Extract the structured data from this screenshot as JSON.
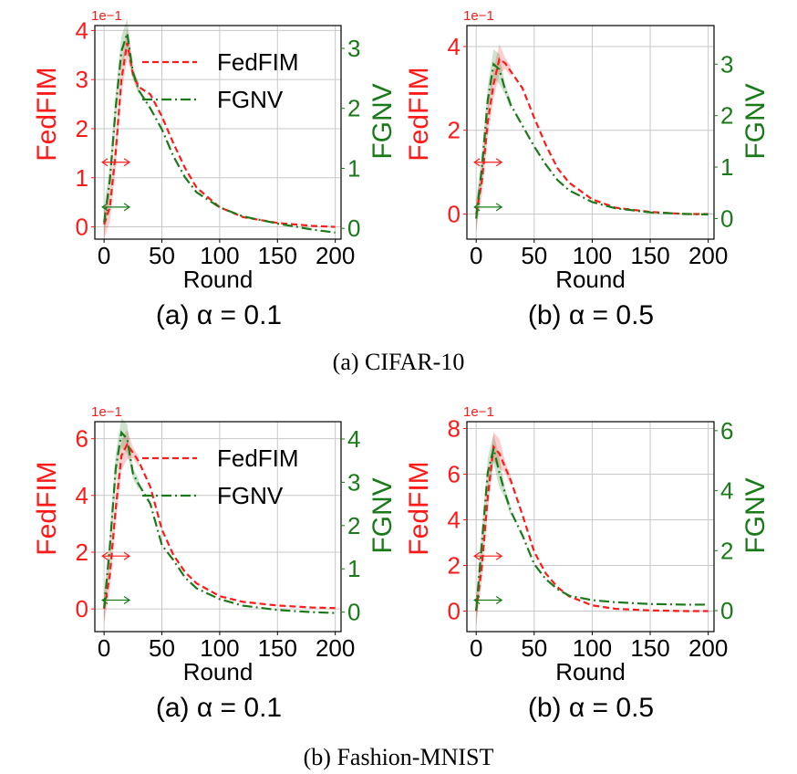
{
  "figure": {
    "groups": [
      {
        "caption": "(a) CIFAR-10"
      },
      {
        "caption": "(b) Fashion-MNIST"
      }
    ]
  },
  "colors": {
    "fedfim": "#ff1a1a",
    "fgnv": "#1a7a1a",
    "grid": "#c8c8c8",
    "axis": "#000000"
  },
  "chart_data": [
    {
      "type": "line",
      "group": "CIFAR-10",
      "subcaption": "(a) α = 0.1",
      "xlabel": "Round",
      "ylabel_left": "FedFIM",
      "ylabel_right": "FGNV",
      "left_multiplier": "1e−1",
      "xlim": [
        -8,
        205
      ],
      "xticks": [
        "0",
        "50",
        "100",
        "150",
        "200"
      ],
      "left_ylim": [
        -0.25,
        4.1
      ],
      "left_yticks": [
        "0",
        "1",
        "2",
        "3",
        "4"
      ],
      "right_ylim": [
        -0.18,
        3.38
      ],
      "right_yticks": [
        "0",
        "1",
        "2",
        "3"
      ],
      "legend": {
        "placement": "upper-right",
        "entries": [
          "FedFIM",
          "FGNV"
        ]
      },
      "grid": true,
      "series": [
        {
          "name": "FedFIM",
          "axis": "left",
          "style": "dashed",
          "x": [
            0,
            5,
            10,
            15,
            20,
            25,
            30,
            40,
            50,
            60,
            70,
            80,
            100,
            120,
            150,
            180,
            200
          ],
          "y": [
            0.05,
            0.4,
            1.5,
            3.0,
            3.75,
            3.1,
            2.85,
            2.7,
            2.25,
            1.7,
            1.2,
            0.8,
            0.4,
            0.2,
            0.08,
            0.02,
            0.0
          ]
        },
        {
          "name": "FGNV",
          "axis": "right",
          "style": "dashdot",
          "x": [
            0,
            5,
            10,
            15,
            20,
            25,
            30,
            40,
            50,
            60,
            70,
            80,
            100,
            120,
            150,
            180,
            200
          ],
          "y": [
            0.1,
            0.8,
            2.0,
            2.95,
            3.25,
            2.6,
            2.3,
            2.0,
            1.65,
            1.2,
            0.85,
            0.6,
            0.35,
            0.2,
            0.08,
            -0.02,
            -0.07
          ]
        }
      ]
    },
    {
      "type": "line",
      "group": "CIFAR-10",
      "subcaption": "(b) α = 0.5",
      "xlabel": "Round",
      "ylabel_left": "FedFIM",
      "ylabel_right": "FGNV",
      "left_multiplier": "1e−1",
      "xlim": [
        -8,
        205
      ],
      "xticks": [
        "0",
        "50",
        "100",
        "150",
        "200"
      ],
      "left_ylim": [
        -0.6,
        4.5
      ],
      "left_yticks": [
        "0",
        "2",
        "4"
      ],
      "right_ylim": [
        -0.4,
        3.75
      ],
      "right_yticks": [
        "0",
        "1",
        "2",
        "3"
      ],
      "legend": {
        "placement": "none",
        "entries": []
      },
      "grid": true,
      "series": [
        {
          "name": "FedFIM",
          "axis": "left",
          "style": "dashed",
          "x": [
            0,
            5,
            10,
            15,
            20,
            25,
            30,
            40,
            50,
            60,
            70,
            80,
            100,
            120,
            150,
            180,
            200
          ],
          "y": [
            0.0,
            0.8,
            2.2,
            3.1,
            3.7,
            3.6,
            3.4,
            3.0,
            2.3,
            1.65,
            1.1,
            0.75,
            0.35,
            0.15,
            0.05,
            0.0,
            0.0
          ]
        },
        {
          "name": "FGNV",
          "axis": "right",
          "style": "dashdot",
          "x": [
            0,
            5,
            10,
            15,
            20,
            25,
            30,
            40,
            50,
            60,
            70,
            80,
            100,
            120,
            150,
            180,
            200
          ],
          "y": [
            0.0,
            1.0,
            2.3,
            3.0,
            2.9,
            2.5,
            2.2,
            1.8,
            1.4,
            1.05,
            0.75,
            0.55,
            0.32,
            0.2,
            0.12,
            0.09,
            0.08
          ]
        }
      ]
    },
    {
      "type": "line",
      "group": "Fashion-MNIST",
      "subcaption": "(a) α = 0.1",
      "xlabel": "Round",
      "ylabel_left": "FedFIM",
      "ylabel_right": "FGNV",
      "left_multiplier": "1e−1",
      "xlim": [
        -8,
        205
      ],
      "xticks": [
        "0",
        "50",
        "100",
        "150",
        "200"
      ],
      "left_ylim": [
        -0.8,
        6.6
      ],
      "left_yticks": [
        "0",
        "2",
        "4",
        "6"
      ],
      "right_ylim": [
        -0.45,
        4.4
      ],
      "right_yticks": [
        "0",
        "1",
        "2",
        "3",
        "4"
      ],
      "legend": {
        "placement": "upper-right",
        "entries": [
          "FedFIM",
          "FGNV"
        ]
      },
      "grid": true,
      "series": [
        {
          "name": "FedFIM",
          "axis": "left",
          "style": "dashed",
          "x": [
            0,
            5,
            10,
            15,
            20,
            25,
            30,
            40,
            50,
            60,
            70,
            80,
            100,
            120,
            150,
            180,
            200
          ],
          "y": [
            0.0,
            1.2,
            3.5,
            5.4,
            5.8,
            5.5,
            5.2,
            4.3,
            2.8,
            1.9,
            1.3,
            0.9,
            0.45,
            0.25,
            0.12,
            0.05,
            0.03
          ]
        },
        {
          "name": "FGNV",
          "axis": "right",
          "style": "dashdot",
          "x": [
            0,
            5,
            10,
            15,
            20,
            25,
            30,
            40,
            50,
            60,
            70,
            80,
            100,
            120,
            150,
            180,
            200
          ],
          "y": [
            0.1,
            1.5,
            3.3,
            4.15,
            4.0,
            3.2,
            2.95,
            2.5,
            1.55,
            1.2,
            0.8,
            0.55,
            0.3,
            0.15,
            0.05,
            0.0,
            -0.02
          ]
        }
      ]
    },
    {
      "type": "line",
      "group": "Fashion-MNIST",
      "subcaption": "(b) α = 0.5",
      "xlabel": "Round",
      "ylabel_left": "FedFIM",
      "ylabel_right": "FGNV",
      "left_multiplier": "1e−1",
      "xlim": [
        -8,
        205
      ],
      "xticks": [
        "0",
        "50",
        "100",
        "150",
        "200"
      ],
      "left_ylim": [
        -0.9,
        8.3
      ],
      "left_yticks": [
        "0",
        "2",
        "4",
        "6",
        "8"
      ],
      "right_ylim": [
        -0.7,
        6.3
      ],
      "right_yticks": [
        "0",
        "2",
        "4",
        "6"
      ],
      "legend": {
        "placement": "none",
        "entries": []
      },
      "grid": true,
      "series": [
        {
          "name": "FedFIM",
          "axis": "left",
          "style": "dashed",
          "x": [
            0,
            5,
            10,
            15,
            20,
            25,
            30,
            40,
            50,
            60,
            70,
            80,
            100,
            120,
            150,
            180,
            200
          ],
          "y": [
            0.0,
            2.0,
            5.0,
            7.2,
            6.9,
            6.3,
            5.7,
            4.2,
            2.6,
            1.65,
            1.05,
            0.65,
            0.25,
            0.1,
            0.03,
            0.0,
            0.0
          ]
        },
        {
          "name": "FGNV",
          "axis": "right",
          "style": "dashdot",
          "x": [
            0,
            5,
            10,
            15,
            20,
            25,
            30,
            40,
            50,
            60,
            70,
            80,
            100,
            120,
            150,
            180,
            200
          ],
          "y": [
            0.0,
            2.3,
            4.6,
            5.4,
            4.6,
            3.9,
            3.3,
            2.5,
            1.55,
            1.05,
            0.72,
            0.5,
            0.35,
            0.28,
            0.22,
            0.2,
            0.2
          ]
        }
      ]
    }
  ]
}
